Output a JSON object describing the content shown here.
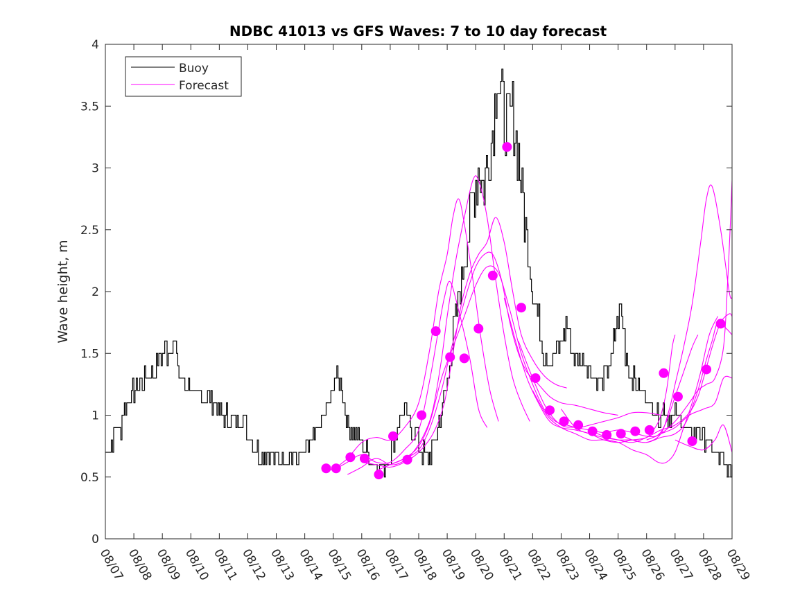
{
  "chart_data": {
    "type": "line",
    "title": "NDBC 41013 vs GFS Waves: 7 to 10 day forecast",
    "xlabel": "",
    "ylabel": "Wave height, m",
    "xlim": [
      0,
      22
    ],
    "ylim": [
      0,
      4
    ],
    "x_ticks": [
      0,
      1,
      2,
      3,
      4,
      5,
      6,
      7,
      8,
      9,
      10,
      11,
      12,
      13,
      14,
      15,
      16,
      17,
      18,
      19,
      20,
      21,
      22
    ],
    "x_tick_labels": [
      "08/07",
      "08/08",
      "08/09",
      "08/10",
      "08/11",
      "08/12",
      "08/13",
      "08/14",
      "08/15",
      "08/16",
      "08/17",
      "08/18",
      "08/19",
      "08/20",
      "08/21",
      "08/22",
      "08/23",
      "08/24",
      "08/25",
      "08/26",
      "08/27",
      "08/28",
      "08/29"
    ],
    "y_ticks": [
      0,
      0.5,
      1,
      1.5,
      2,
      2.5,
      3,
      3.5,
      4
    ],
    "y_tick_labels": [
      "0",
      "0.5",
      "1",
      "1.5",
      "2",
      "2.5",
      "3",
      "3.5",
      "4"
    ],
    "x_units": "days since 08/07",
    "grid": false,
    "legend": {
      "position": "top-left",
      "entries": [
        "Buoy",
        "Forecast"
      ]
    },
    "colors": {
      "buoy": "#000000",
      "forecast": "#ff00ff",
      "markers": "#ff00ff"
    },
    "buoy_keypoints": [
      [
        0,
        0.7
      ],
      [
        0.2,
        0.75
      ],
      [
        0.4,
        0.9
      ],
      [
        0.5,
        0.85
      ],
      [
        0.6,
        1.0
      ],
      [
        0.8,
        1.15
      ],
      [
        1.0,
        1.2
      ],
      [
        1.2,
        1.25
      ],
      [
        1.5,
        1.3
      ],
      [
        1.8,
        1.4
      ],
      [
        2.0,
        1.5
      ],
      [
        2.2,
        1.55
      ],
      [
        2.4,
        1.6
      ],
      [
        2.5,
        1.45
      ],
      [
        2.6,
        1.3
      ],
      [
        2.8,
        1.25
      ],
      [
        3.0,
        1.2
      ],
      [
        3.2,
        1.15
      ],
      [
        3.5,
        1.15
      ],
      [
        3.8,
        1.1
      ],
      [
        4.0,
        1.05
      ],
      [
        4.2,
        1.0
      ],
      [
        4.4,
        0.95
      ],
      [
        4.6,
        0.95
      ],
      [
        4.8,
        1.0
      ],
      [
        5.0,
        0.85
      ],
      [
        5.2,
        0.75
      ],
      [
        5.4,
        0.7
      ],
      [
        5.6,
        0.68
      ],
      [
        6.0,
        0.66
      ],
      [
        6.4,
        0.68
      ],
      [
        6.8,
        0.65
      ],
      [
        7.0,
        0.7
      ],
      [
        7.3,
        0.8
      ],
      [
        7.6,
        0.95
      ],
      [
        7.9,
        1.15
      ],
      [
        8.1,
        1.35
      ],
      [
        8.3,
        1.2
      ],
      [
        8.5,
        0.95
      ],
      [
        8.7,
        0.85
      ],
      [
        8.9,
        0.82
      ],
      [
        9.1,
        0.75
      ],
      [
        9.3,
        0.65
      ],
      [
        9.5,
        0.6
      ],
      [
        9.7,
        0.55
      ],
      [
        9.9,
        0.65
      ],
      [
        10.1,
        0.75
      ],
      [
        10.3,
        0.95
      ],
      [
        10.5,
        1.05
      ],
      [
        10.7,
        0.9
      ],
      [
        10.9,
        0.85
      ],
      [
        11.1,
        0.7
      ],
      [
        11.3,
        0.65
      ],
      [
        11.5,
        0.75
      ],
      [
        11.7,
        0.95
      ],
      [
        11.9,
        1.15
      ],
      [
        12.1,
        1.45
      ],
      [
        12.3,
        1.8
      ],
      [
        12.5,
        2.1
      ],
      [
        12.7,
        2.4
      ],
      [
        12.9,
        2.75
      ],
      [
        13.1,
        3.0
      ],
      [
        13.3,
        2.85
      ],
      [
        13.45,
        3.1
      ],
      [
        13.6,
        3.3
      ],
      [
        13.75,
        3.8
      ],
      [
        13.85,
        3.6
      ],
      [
        13.95,
        3.45
      ],
      [
        14.1,
        3.35
      ],
      [
        14.3,
        3.45
      ],
      [
        14.45,
        3.2
      ],
      [
        14.6,
        2.85
      ],
      [
        14.8,
        2.4
      ],
      [
        15.0,
        2.0
      ],
      [
        15.2,
        1.75
      ],
      [
        15.4,
        1.5
      ],
      [
        15.6,
        1.45
      ],
      [
        15.8,
        1.5
      ],
      [
        16.0,
        1.6
      ],
      [
        16.2,
        1.75
      ],
      [
        16.4,
        1.5
      ],
      [
        16.6,
        1.45
      ],
      [
        16.8,
        1.45
      ],
      [
        17.0,
        1.35
      ],
      [
        17.2,
        1.3
      ],
      [
        17.4,
        1.3
      ],
      [
        17.6,
        1.35
      ],
      [
        17.8,
        1.5
      ],
      [
        17.95,
        1.75
      ],
      [
        18.1,
        1.85
      ],
      [
        18.25,
        1.55
      ],
      [
        18.4,
        1.35
      ],
      [
        18.6,
        1.25
      ],
      [
        18.8,
        1.2
      ],
      [
        19.0,
        1.15
      ],
      [
        19.2,
        1.05
      ],
      [
        19.4,
        1.0
      ],
      [
        19.6,
        1.05
      ],
      [
        19.8,
        1.0
      ],
      [
        20.0,
        1.0
      ],
      [
        20.2,
        0.95
      ],
      [
        20.4,
        0.9
      ],
      [
        20.6,
        0.8
      ],
      [
        20.8,
        0.9
      ],
      [
        21.0,
        0.85
      ],
      [
        21.2,
        0.75
      ],
      [
        21.4,
        0.68
      ],
      [
        21.6,
        0.62
      ],
      [
        21.8,
        0.58
      ],
      [
        21.9,
        0.5
      ],
      [
        22.0,
        0.6
      ]
    ],
    "forecast_curves": [
      [
        [
          7.6,
          0.57
        ],
        [
          8.0,
          0.56
        ],
        [
          8.5,
          0.62
        ],
        [
          9.0,
          0.68
        ],
        [
          9.5,
          0.62
        ],
        [
          10.0,
          0.62
        ],
        [
          10.5,
          0.72
        ],
        [
          11.0,
          0.88
        ],
        [
          11.4,
          1.3
        ],
        [
          11.7,
          1.7
        ],
        [
          11.9,
          1.95
        ],
        [
          12.1,
          2.08
        ],
        [
          12.4,
          1.85
        ],
        [
          12.8,
          1.45
        ],
        [
          13.1,
          1.05
        ],
        [
          13.4,
          0.9
        ]
      ],
      [
        [
          8.0,
          0.56
        ],
        [
          8.5,
          0.65
        ],
        [
          9.0,
          0.78
        ],
        [
          9.5,
          0.82
        ],
        [
          10.0,
          0.8
        ],
        [
          10.5,
          0.9
        ],
        [
          11.0,
          1.1
        ],
        [
          11.4,
          1.55
        ],
        [
          11.7,
          2.0
        ],
        [
          12.0,
          2.3
        ],
        [
          12.2,
          2.6
        ],
        [
          12.4,
          2.75
        ],
        [
          12.6,
          2.55
        ],
        [
          12.9,
          2.1
        ],
        [
          13.2,
          1.6
        ],
        [
          13.5,
          1.2
        ],
        [
          13.8,
          0.95
        ]
      ],
      [
        [
          8.5,
          0.52
        ],
        [
          9.0,
          0.58
        ],
        [
          9.5,
          0.65
        ],
        [
          10.0,
          0.6
        ],
        [
          10.4,
          0.62
        ],
        [
          10.8,
          0.7
        ],
        [
          11.2,
          0.85
        ],
        [
          11.5,
          1.05
        ],
        [
          11.8,
          1.45
        ],
        [
          12.0,
          1.8
        ],
        [
          12.3,
          2.25
        ],
        [
          12.6,
          2.6
        ],
        [
          12.9,
          2.9
        ],
        [
          13.1,
          2.9
        ],
        [
          13.4,
          2.6
        ],
        [
          13.7,
          2.1
        ],
        [
          14.0,
          1.65
        ],
        [
          14.3,
          1.3
        ],
        [
          14.6,
          1.1
        ],
        [
          14.9,
          0.95
        ]
      ],
      [
        [
          9.0,
          0.62
        ],
        [
          9.5,
          0.6
        ],
        [
          10.0,
          0.58
        ],
        [
          10.5,
          0.62
        ],
        [
          11.0,
          0.7
        ],
        [
          11.5,
          0.85
        ],
        [
          11.9,
          1.1
        ],
        [
          12.2,
          1.5
        ],
        [
          12.5,
          1.9
        ],
        [
          12.8,
          2.15
        ],
        [
          13.1,
          2.3
        ],
        [
          13.4,
          2.4
        ],
        [
          13.7,
          2.6
        ],
        [
          14.0,
          2.4
        ],
        [
          14.3,
          2.0
        ],
        [
          14.6,
          1.65
        ],
        [
          15.0,
          1.45
        ],
        [
          15.4,
          1.32
        ],
        [
          15.8,
          1.25
        ],
        [
          16.2,
          1.22
        ]
      ],
      [
        [
          9.5,
          0.55
        ],
        [
          10.0,
          0.6
        ],
        [
          10.5,
          0.65
        ],
        [
          11.0,
          0.72
        ],
        [
          11.4,
          0.9
        ],
        [
          11.8,
          1.2
        ],
        [
          12.1,
          1.5
        ],
        [
          12.4,
          1.75
        ],
        [
          12.7,
          2.0
        ],
        [
          13.0,
          2.2
        ],
        [
          13.3,
          2.3
        ],
        [
          13.6,
          2.3
        ],
        [
          13.9,
          2.1
        ],
        [
          14.2,
          1.75
        ],
        [
          14.5,
          1.5
        ],
        [
          14.8,
          1.35
        ],
        [
          15.2,
          1.25
        ],
        [
          15.6,
          1.15
        ],
        [
          16.0,
          1.1
        ],
        [
          16.5,
          1.08
        ],
        [
          17.0,
          1.05
        ],
        [
          17.5,
          1.02
        ],
        [
          18.0,
          1.0
        ]
      ],
      [
        [
          10.0,
          0.6
        ],
        [
          10.5,
          0.65
        ],
        [
          11.0,
          0.75
        ],
        [
          11.4,
          0.95
        ],
        [
          11.8,
          1.3
        ],
        [
          12.2,
          1.55
        ],
        [
          12.6,
          1.8
        ],
        [
          13.0,
          2.05
        ],
        [
          13.4,
          2.2
        ],
        [
          13.8,
          2.15
        ],
        [
          14.2,
          1.85
        ],
        [
          14.6,
          1.5
        ],
        [
          15.0,
          1.25
        ],
        [
          15.4,
          1.05
        ],
        [
          15.8,
          0.95
        ],
        [
          16.2,
          0.92
        ],
        [
          16.6,
          0.9
        ],
        [
          17.0,
          0.92
        ],
        [
          17.5,
          0.95
        ],
        [
          18.0,
          0.98
        ],
        [
          18.5,
          1.02
        ],
        [
          19.0,
          1.02
        ],
        [
          19.5,
          1.0
        ]
      ],
      [
        [
          14.0,
          1.95
        ],
        [
          14.4,
          1.6
        ],
        [
          14.8,
          1.3
        ],
        [
          15.2,
          1.1
        ],
        [
          15.6,
          0.95
        ],
        [
          16.0,
          0.9
        ],
        [
          16.5,
          0.88
        ],
        [
          17.0,
          0.85
        ],
        [
          17.5,
          0.8
        ],
        [
          18.0,
          0.78
        ],
        [
          18.5,
          0.8
        ],
        [
          19.0,
          0.82
        ],
        [
          19.3,
          0.9
        ],
        [
          19.5,
          1.0
        ],
        [
          19.7,
          1.2
        ],
        [
          19.9,
          1.55
        ],
        [
          20.0,
          1.65
        ]
      ],
      [
        [
          14.5,
          1.6
        ],
        [
          15.0,
          1.3
        ],
        [
          15.5,
          1.05
        ],
        [
          16.0,
          0.92
        ],
        [
          16.5,
          0.9
        ],
        [
          17.0,
          0.88
        ],
        [
          17.5,
          0.86
        ],
        [
          18.0,
          0.88
        ],
        [
          18.5,
          0.86
        ],
        [
          19.0,
          0.83
        ],
        [
          19.4,
          0.84
        ],
        [
          19.7,
          0.95
        ],
        [
          20.0,
          1.15
        ],
        [
          20.3,
          1.35
        ],
        [
          20.6,
          1.55
        ],
        [
          20.8,
          1.65
        ]
      ],
      [
        [
          15.0,
          1.2
        ],
        [
          15.5,
          1.0
        ],
        [
          16.0,
          0.9
        ],
        [
          16.5,
          0.85
        ],
        [
          17.0,
          0.8
        ],
        [
          17.5,
          0.8
        ],
        [
          18.0,
          0.78
        ],
        [
          18.5,
          0.72
        ],
        [
          19.0,
          0.68
        ],
        [
          19.4,
          0.62
        ],
        [
          19.7,
          0.62
        ],
        [
          20.0,
          0.7
        ],
        [
          20.3,
          0.9
        ],
        [
          20.6,
          1.1
        ],
        [
          20.9,
          1.35
        ],
        [
          21.2,
          1.65
        ],
        [
          21.5,
          1.8
        ]
      ],
      [
        [
          16.0,
          1.05
        ],
        [
          16.5,
          0.9
        ],
        [
          17.0,
          0.85
        ],
        [
          17.5,
          0.82
        ],
        [
          18.0,
          0.8
        ],
        [
          18.5,
          0.8
        ],
        [
          19.0,
          0.78
        ],
        [
          19.5,
          0.85
        ],
        [
          19.8,
          1.05
        ],
        [
          20.0,
          1.25
        ],
        [
          20.3,
          1.55
        ],
        [
          20.6,
          1.9
        ],
        [
          20.9,
          2.4
        ],
        [
          21.1,
          2.75
        ],
        [
          21.3,
          2.85
        ],
        [
          21.6,
          2.5
        ],
        [
          21.9,
          2.0
        ],
        [
          22.0,
          1.95
        ]
      ],
      [
        [
          17.0,
          0.88
        ],
        [
          17.5,
          0.83
        ],
        [
          18.0,
          0.8
        ],
        [
          18.5,
          0.78
        ],
        [
          19.0,
          0.82
        ],
        [
          19.5,
          0.88
        ],
        [
          20.0,
          0.92
        ],
        [
          20.5,
          1.02
        ],
        [
          20.8,
          1.15
        ],
        [
          21.0,
          1.3
        ],
        [
          21.3,
          1.55
        ],
        [
          21.6,
          1.75
        ],
        [
          21.9,
          1.82
        ],
        [
          22.0,
          1.8
        ]
      ],
      [
        [
          18.0,
          0.85
        ],
        [
          18.5,
          0.8
        ],
        [
          19.0,
          0.78
        ],
        [
          19.5,
          0.82
        ],
        [
          20.0,
          0.85
        ],
        [
          20.4,
          0.95
        ],
        [
          20.8,
          1.2
        ],
        [
          21.1,
          1.45
        ],
        [
          21.3,
          1.6
        ],
        [
          21.5,
          1.75
        ],
        [
          21.8,
          1.7
        ],
        [
          22.0,
          1.65
        ]
      ],
      [
        [
          19.0,
          0.8
        ],
        [
          19.5,
          0.85
        ],
        [
          20.0,
          0.95
        ],
        [
          20.5,
          1.1
        ],
        [
          20.8,
          1.2
        ],
        [
          21.1,
          1.25
        ],
        [
          21.4,
          1.3
        ],
        [
          21.7,
          1.55
        ],
        [
          21.85,
          2.1
        ],
        [
          21.95,
          2.6
        ],
        [
          22.0,
          2.9
        ]
      ],
      [
        [
          19.5,
          0.85
        ],
        [
          20.0,
          0.9
        ],
        [
          20.5,
          1.0
        ],
        [
          21.0,
          1.05
        ],
        [
          21.4,
          1.1
        ],
        [
          21.7,
          1.3
        ],
        [
          22.0,
          1.3
        ]
      ],
      [
        [
          20.0,
          0.8
        ],
        [
          20.5,
          0.75
        ],
        [
          21.0,
          0.72
        ],
        [
          21.4,
          0.8
        ],
        [
          21.7,
          0.92
        ],
        [
          22.0,
          0.7
        ]
      ]
    ],
    "forecast_points": [
      [
        7.75,
        0.57
      ],
      [
        8.1,
        0.57
      ],
      [
        8.6,
        0.66
      ],
      [
        9.1,
        0.65
      ],
      [
        9.6,
        0.52
      ],
      [
        10.1,
        0.83
      ],
      [
        10.6,
        0.64
      ],
      [
        11.1,
        1.0
      ],
      [
        11.6,
        1.68
      ],
      [
        12.1,
        1.47
      ],
      [
        12.6,
        1.46
      ],
      [
        13.1,
        1.7
      ],
      [
        13.6,
        2.13
      ],
      [
        14.1,
        3.17
      ],
      [
        14.6,
        1.87
      ],
      [
        15.1,
        1.3
      ],
      [
        15.6,
        1.04
      ],
      [
        16.1,
        0.95
      ],
      [
        16.6,
        0.92
      ],
      [
        17.1,
        0.87
      ],
      [
        17.6,
        0.84
      ],
      [
        18.1,
        0.85
      ],
      [
        18.6,
        0.87
      ],
      [
        19.1,
        0.88
      ],
      [
        19.6,
        1.34
      ],
      [
        20.1,
        1.15
      ],
      [
        20.6,
        0.79
      ],
      [
        21.1,
        1.37
      ],
      [
        21.6,
        1.74
      ]
    ]
  }
}
